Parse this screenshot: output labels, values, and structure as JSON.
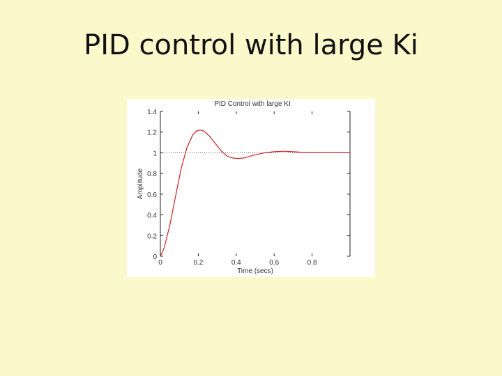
{
  "slide": {
    "title": "PID control with large Ki"
  },
  "chart_data": {
    "type": "line",
    "title": "PID Control with large KI",
    "xlabel": "Time (secs)",
    "ylabel": "Amplitude",
    "xlim": [
      0,
      1
    ],
    "ylim": [
      0,
      1.4
    ],
    "x_ticks": [
      "0",
      "0.2",
      "0.4",
      "0.6",
      "0.8"
    ],
    "y_ticks": [
      "0",
      "0.2",
      "0.4",
      "0.6",
      "0.8",
      "1",
      "1.2",
      "1.4"
    ],
    "reference_line": 1,
    "line_color": "#cc2222",
    "grid": false,
    "series": [
      {
        "x": [
          0,
          0.02,
          0.05,
          0.08,
          0.11,
          0.14,
          0.17,
          0.19,
          0.21,
          0.23,
          0.26,
          0.29,
          0.32,
          0.35,
          0.38,
          0.41,
          0.44,
          0.47,
          0.5,
          0.55,
          0.6,
          0.65,
          0.7,
          0.75,
          0.8,
          0.85,
          0.9,
          0.95,
          1.0
        ],
        "y": [
          0,
          0.08,
          0.3,
          0.58,
          0.85,
          1.05,
          1.17,
          1.21,
          1.22,
          1.21,
          1.16,
          1.09,
          1.02,
          0.97,
          0.95,
          0.945,
          0.95,
          0.965,
          0.98,
          1.0,
          1.01,
          1.015,
          1.01,
          1.005,
          1.0,
          1.0,
          1.0,
          1.0,
          1.0
        ]
      }
    ]
  }
}
